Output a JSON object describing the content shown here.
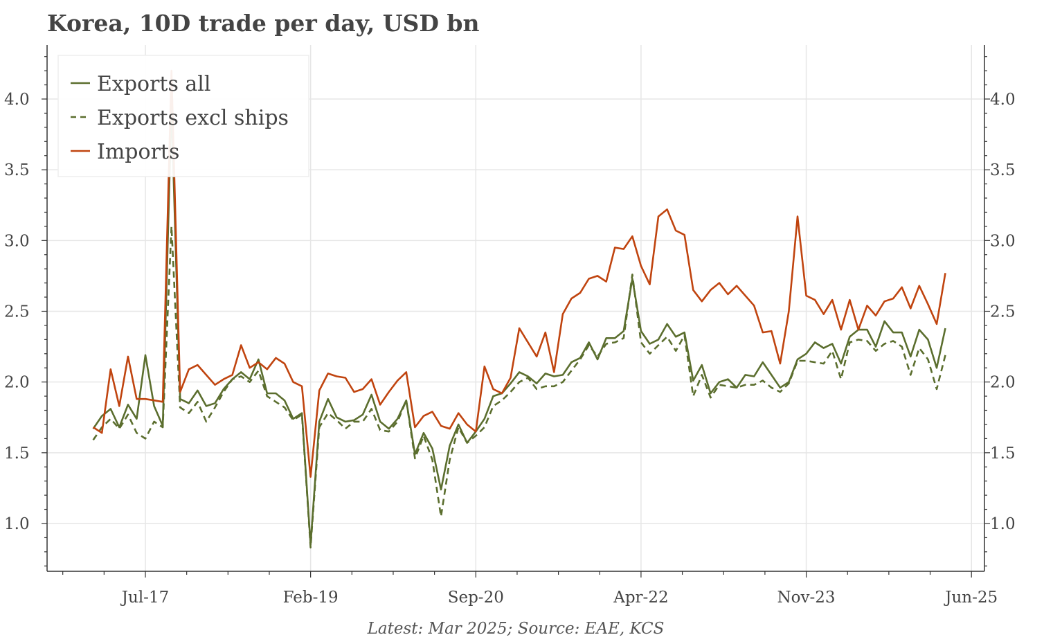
{
  "chart_data": {
    "type": "line",
    "title": "Korea, 10D trade per day, USD bn",
    "footnote": "Latest: Mar 2025; Source: EAE, KCS",
    "frequency": "monthly",
    "start": "2017-01",
    "xlabel": "",
    "ylabel": "",
    "ylim": [
      0.66,
      4.38
    ],
    "yticks": [
      "1.0",
      "1.5",
      "2.0",
      "2.5",
      "3.0",
      "3.5",
      "4.0"
    ],
    "xticks": [
      "Jul-17",
      "Feb-19",
      "Sep-20",
      "Apr-22",
      "Nov-23",
      "Jun-25"
    ],
    "grid": true,
    "legend_position": "top-left",
    "colors": {
      "exports": "#5b6e2e",
      "imports": "#c0440f"
    },
    "series": [
      {
        "name": "Exports all",
        "style": "solid",
        "color": "#5b6e2e",
        "values": [
          1.67,
          1.76,
          1.81,
          1.68,
          1.84,
          1.74,
          2.19,
          1.83,
          1.69,
          3.95,
          1.88,
          1.85,
          1.94,
          1.83,
          1.85,
          1.95,
          2.02,
          2.07,
          2.02,
          2.16,
          1.92,
          1.92,
          1.87,
          1.74,
          1.78,
          0.85,
          1.72,
          1.88,
          1.75,
          1.72,
          1.73,
          1.77,
          1.91,
          1.72,
          1.67,
          1.74,
          1.87,
          1.49,
          1.64,
          1.53,
          1.24,
          1.55,
          1.7,
          1.57,
          1.65,
          1.74,
          1.9,
          1.92,
          1.99,
          2.07,
          2.04,
          1.99,
          2.06,
          2.04,
          2.05,
          2.14,
          2.17,
          2.28,
          2.16,
          2.31,
          2.31,
          2.36,
          2.73,
          2.36,
          2.27,
          2.3,
          2.41,
          2.32,
          2.35,
          2.01,
          2.12,
          1.92,
          2.0,
          2.02,
          1.96,
          2.05,
          2.04,
          2.14,
          2.05,
          1.96,
          2.0,
          2.16,
          2.2,
          2.28,
          2.24,
          2.27,
          2.13,
          2.32,
          2.37,
          2.37,
          2.25,
          2.43,
          2.35,
          2.35,
          2.18,
          2.37,
          2.3,
          2.1,
          2.38
        ]
      },
      {
        "name": "Exports excl ships",
        "style": "dashed",
        "color": "#5b6e2e",
        "values": [
          1.59,
          1.68,
          1.74,
          1.67,
          1.77,
          1.64,
          1.6,
          1.72,
          1.68,
          3.1,
          1.82,
          1.78,
          1.86,
          1.72,
          1.82,
          1.93,
          2.02,
          2.04,
          2.0,
          2.08,
          1.9,
          1.86,
          1.82,
          1.73,
          1.77,
          0.83,
          1.68,
          1.78,
          1.73,
          1.67,
          1.72,
          1.72,
          1.81,
          1.66,
          1.65,
          1.72,
          1.87,
          1.46,
          1.62,
          1.45,
          1.05,
          1.45,
          1.68,
          1.57,
          1.62,
          1.68,
          1.83,
          1.87,
          1.93,
          2.0,
          2.03,
          1.95,
          1.97,
          1.97,
          2.0,
          2.08,
          2.16,
          2.26,
          2.18,
          2.27,
          2.28,
          2.31,
          2.76,
          2.28,
          2.2,
          2.26,
          2.32,
          2.22,
          2.33,
          1.9,
          2.05,
          1.89,
          1.98,
          1.97,
          1.96,
          1.98,
          1.98,
          2.01,
          1.96,
          1.93,
          1.99,
          2.15,
          2.15,
          2.14,
          2.13,
          2.22,
          2.02,
          2.28,
          2.3,
          2.29,
          2.22,
          2.27,
          2.29,
          2.25,
          2.05,
          2.24,
          2.16,
          1.95,
          2.19
        ]
      },
      {
        "name": "Imports",
        "style": "solid",
        "color": "#c0440f",
        "values": [
          1.68,
          1.64,
          2.09,
          1.83,
          2.18,
          1.88,
          1.88,
          1.87,
          1.86,
          4.2,
          1.93,
          2.09,
          2.12,
          2.05,
          1.98,
          2.02,
          2.05,
          2.26,
          2.1,
          2.14,
          2.09,
          2.17,
          2.13,
          2.0,
          1.97,
          1.33,
          1.94,
          2.06,
          2.04,
          2.03,
          1.93,
          1.95,
          2.02,
          1.84,
          1.93,
          2.01,
          2.07,
          1.68,
          1.76,
          1.79,
          1.69,
          1.67,
          1.78,
          1.7,
          1.65,
          2.11,
          1.95,
          1.92,
          2.03,
          2.38,
          2.28,
          2.18,
          2.35,
          2.07,
          2.48,
          2.59,
          2.63,
          2.73,
          2.75,
          2.71,
          2.95,
          2.94,
          3.03,
          2.82,
          2.69,
          3.17,
          3.22,
          3.07,
          3.04,
          2.65,
          2.57,
          2.65,
          2.7,
          2.62,
          2.68,
          2.61,
          2.54,
          2.35,
          2.36,
          2.13,
          2.5,
          3.17,
          2.61,
          2.58,
          2.48,
          2.58,
          2.37,
          2.58,
          2.37,
          2.54,
          2.47,
          2.57,
          2.59,
          2.67,
          2.52,
          2.68,
          2.55,
          2.41,
          2.77
        ]
      }
    ]
  }
}
